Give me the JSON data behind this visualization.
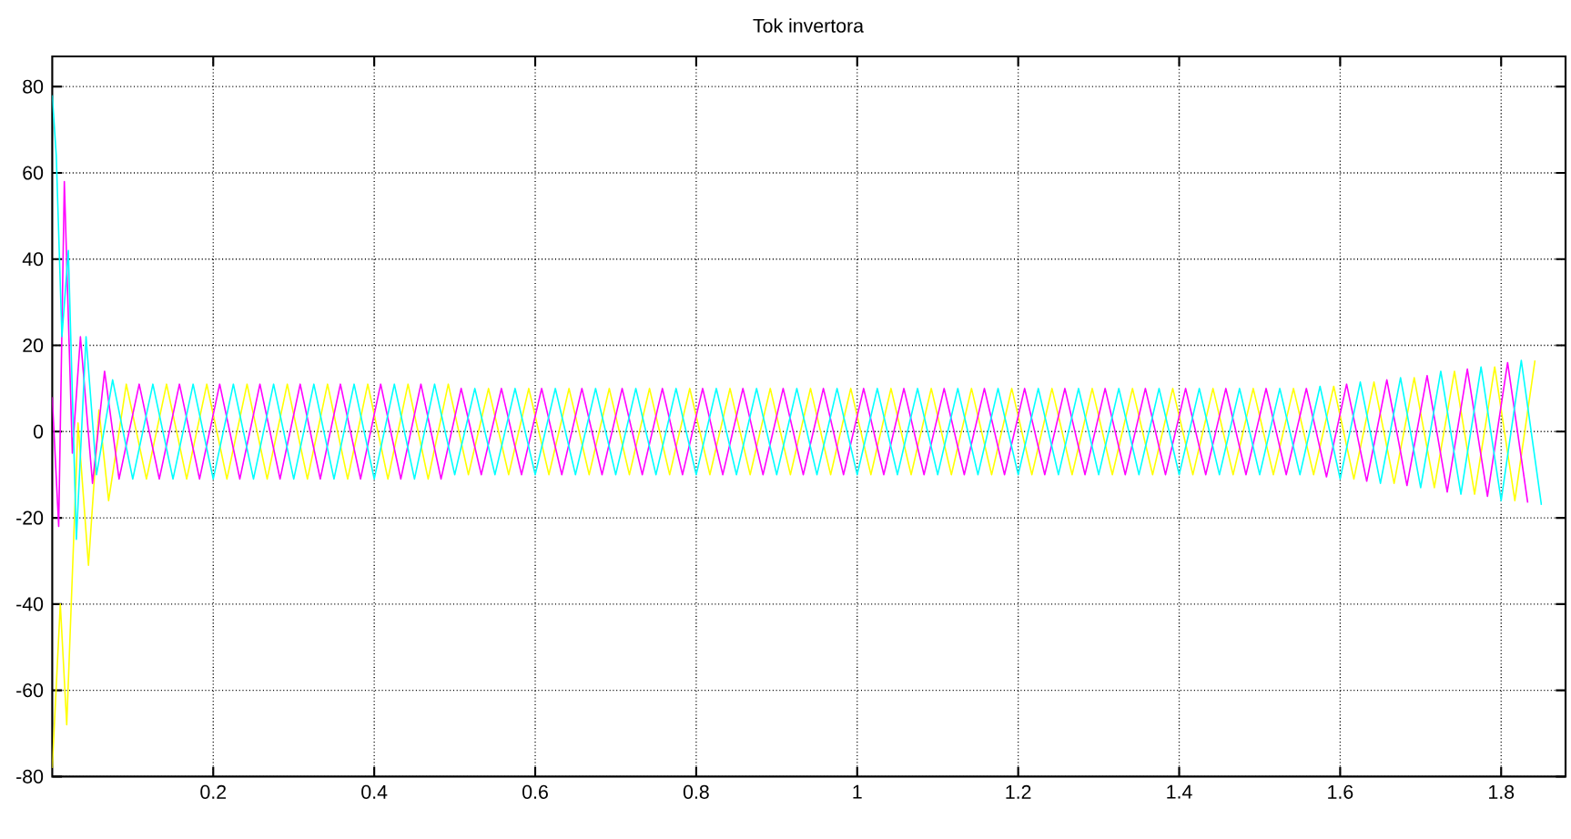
{
  "chart_data": {
    "type": "line",
    "title": "Tok invertora",
    "xlim": [
      0,
      1.88
    ],
    "ylim": [
      -80,
      87
    ],
    "xticks": [
      0.2,
      0.4,
      0.6,
      0.8,
      1,
      1.2,
      1.4,
      1.6,
      1.8
    ],
    "yticks": [
      -80,
      -60,
      -40,
      -20,
      0,
      20,
      40,
      60,
      80
    ],
    "grid": true,
    "marker": "none",
    "line_style": "solid",
    "series": [
      {
        "color": "#ffff00",
        "x": [
          0,
          0.01,
          0.018,
          0.032,
          0.045,
          0.058,
          0.07,
          0.092,
          0.117,
          0.142,
          0.167,
          0.192,
          0.217,
          0.242,
          0.267,
          0.292,
          0.317,
          0.342,
          0.367,
          0.392,
          0.417,
          0.442,
          0.467,
          0.492,
          0.517,
          0.542,
          0.567,
          0.592,
          0.617,
          0.642,
          0.667,
          0.692,
          0.717,
          0.742,
          0.767,
          0.792,
          0.817,
          0.842,
          0.867,
          0.892,
          0.917,
          0.942,
          0.967,
          0.992,
          1.017,
          1.042,
          1.067,
          1.092,
          1.117,
          1.142,
          1.167,
          1.192,
          1.217,
          1.242,
          1.267,
          1.292,
          1.317,
          1.342,
          1.367,
          1.392,
          1.417,
          1.442,
          1.467,
          1.492,
          1.517,
          1.542,
          1.567,
          1.592,
          1.617,
          1.642,
          1.667,
          1.692,
          1.717,
          1.742,
          1.767,
          1.792,
          1.817,
          1.842
        ],
        "values": [
          -78,
          -40,
          -68,
          2,
          -31,
          5,
          -16,
          11,
          -11,
          11,
          -11,
          11,
          -11,
          11,
          -11,
          11,
          -11,
          11,
          -11,
          11,
          -11,
          11,
          -11,
          11,
          -10,
          10,
          -10,
          10,
          -10,
          10,
          -10,
          10,
          -10,
          10,
          -10,
          10,
          -10,
          10,
          -10,
          10,
          -10,
          10,
          -10,
          10,
          -10,
          10,
          -10,
          10,
          -10,
          10,
          -10,
          10,
          -10,
          10,
          -10,
          10,
          -10,
          10,
          -10,
          10,
          -10,
          10,
          -10,
          10,
          -10,
          10,
          -10,
          10.5,
          -11,
          11.5,
          -12,
          12.5,
          -13,
          14,
          -14.5,
          15,
          -16,
          16.5
        ]
      },
      {
        "color": "#ff00ff",
        "x": [
          0,
          0.008,
          0.015,
          0.025,
          0.035,
          0.05,
          0.065,
          0.083,
          0.108,
          0.133,
          0.158,
          0.183,
          0.208,
          0.233,
          0.258,
          0.283,
          0.308,
          0.333,
          0.358,
          0.383,
          0.408,
          0.433,
          0.458,
          0.483,
          0.508,
          0.533,
          0.558,
          0.583,
          0.608,
          0.633,
          0.658,
          0.683,
          0.708,
          0.733,
          0.758,
          0.783,
          0.808,
          0.833,
          0.858,
          0.883,
          0.908,
          0.933,
          0.958,
          0.983,
          1.008,
          1.033,
          1.058,
          1.083,
          1.108,
          1.133,
          1.158,
          1.183,
          1.208,
          1.233,
          1.258,
          1.283,
          1.308,
          1.333,
          1.358,
          1.383,
          1.408,
          1.433,
          1.458,
          1.483,
          1.508,
          1.533,
          1.558,
          1.583,
          1.608,
          1.633,
          1.658,
          1.683,
          1.708,
          1.733,
          1.758,
          1.783,
          1.808,
          1.833
        ],
        "values": [
          8,
          -22,
          58,
          -5,
          22,
          -12,
          14,
          -11,
          11,
          -11,
          11,
          -11,
          11,
          -11,
          11,
          -11,
          11,
          -11,
          11,
          -11,
          11,
          -11,
          11,
          -11,
          10,
          -10,
          10,
          -10,
          10,
          -10,
          10,
          -10,
          10,
          -10,
          10,
          -10,
          10,
          -10,
          10,
          -10,
          10,
          -10,
          10,
          -10,
          10,
          -10,
          10,
          -10,
          10,
          -10,
          10,
          -10,
          10,
          -10,
          10,
          -10,
          10,
          -10,
          10,
          -10,
          10,
          -10,
          10,
          -10,
          10,
          -10,
          10,
          -10.5,
          11,
          -11.5,
          12,
          -12.5,
          13,
          -14,
          14.5,
          -15,
          16,
          -16.5
        ]
      },
      {
        "color": "#00ffff",
        "x": [
          0,
          0.005,
          0.012,
          0.02,
          0.03,
          0.042,
          0.055,
          0.075,
          0.1,
          0.125,
          0.15,
          0.175,
          0.2,
          0.225,
          0.25,
          0.275,
          0.3,
          0.325,
          0.35,
          0.375,
          0.4,
          0.425,
          0.45,
          0.475,
          0.5,
          0.525,
          0.55,
          0.575,
          0.6,
          0.625,
          0.65,
          0.675,
          0.7,
          0.725,
          0.75,
          0.775,
          0.8,
          0.825,
          0.85,
          0.875,
          0.9,
          0.925,
          0.95,
          0.975,
          1,
          1.025,
          1.05,
          1.075,
          1.1,
          1.125,
          1.15,
          1.175,
          1.2,
          1.225,
          1.25,
          1.275,
          1.3,
          1.325,
          1.35,
          1.375,
          1.4,
          1.425,
          1.45,
          1.475,
          1.5,
          1.525,
          1.55,
          1.575,
          1.6,
          1.625,
          1.65,
          1.675,
          1.7,
          1.725,
          1.75,
          1.775,
          1.8,
          1.825,
          1.85
        ],
        "values": [
          78,
          64,
          22,
          42,
          -25,
          22,
          -10,
          12,
          -11,
          11,
          -11,
          11,
          -11,
          11,
          -11,
          11,
          -11,
          11,
          -11,
          11,
          -11,
          11,
          -11,
          11,
          -10,
          10,
          -10,
          10,
          -10,
          10,
          -10,
          10,
          -10,
          10,
          -10,
          10,
          -10,
          10,
          -10,
          10,
          -10,
          10,
          -10,
          10,
          -10,
          10,
          -10,
          10,
          -10,
          10,
          -10,
          10,
          -10,
          10,
          -10,
          10,
          -10,
          10,
          -10,
          10,
          -10,
          10,
          -10,
          10,
          -10,
          10,
          -10,
          10.5,
          -11,
          11.5,
          -12,
          12.5,
          -13,
          14,
          -14.5,
          15,
          -16,
          16.5,
          -17
        ]
      }
    ]
  }
}
